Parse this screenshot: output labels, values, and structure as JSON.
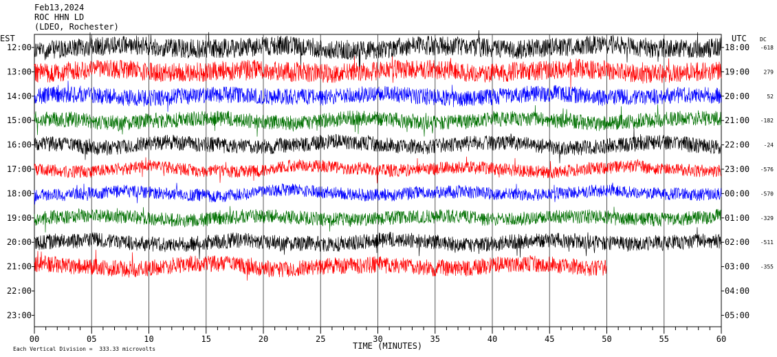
{
  "header": {
    "date": "Feb13,2024",
    "station": "ROC HHN LD",
    "network": "(LDEO, Rochester)"
  },
  "chart_data": {
    "type": "line",
    "xlabel": "TIME (MINUTES)",
    "x_ticks": [
      "00",
      "05",
      "10",
      "15",
      "20",
      "25",
      "30",
      "35",
      "40",
      "45",
      "50",
      "55",
      "60"
    ],
    "xlim": [
      0,
      60
    ],
    "left_axis_label": "EST",
    "right_axis_label": "UTC",
    "dc_label": "DC",
    "scale_note": "Each Vertical Division =  333.33 microvolts",
    "rows": [
      {
        "est": "12:00",
        "utc": "18:00",
        "dc": "-618",
        "color": "#000000",
        "minutes": 60,
        "amp": 14
      },
      {
        "est": "13:00",
        "utc": "19:00",
        "dc": "279",
        "color": "#ff0000",
        "minutes": 60,
        "amp": 14
      },
      {
        "est": "14:00",
        "utc": "20:00",
        "dc": "52",
        "color": "#0000ff",
        "minutes": 60,
        "amp": 12
      },
      {
        "est": "15:00",
        "utc": "21:00",
        "dc": "-182",
        "color": "#007000",
        "minutes": 60,
        "amp": 11
      },
      {
        "est": "16:00",
        "utc": "22:00",
        "dc": "-24",
        "color": "#000000",
        "minutes": 60,
        "amp": 11
      },
      {
        "est": "17:00",
        "utc": "23:00",
        "dc": "-576",
        "color": "#ff0000",
        "minutes": 60,
        "amp": 9
      },
      {
        "est": "18:00",
        "utc": "00:00",
        "dc": "-570",
        "color": "#0000ff",
        "minutes": 60,
        "amp": 9
      },
      {
        "est": "19:00",
        "utc": "01:00",
        "dc": "-329",
        "color": "#007000",
        "minutes": 60,
        "amp": 10
      },
      {
        "est": "20:00",
        "utc": "02:00",
        "dc": "-511",
        "color": "#000000",
        "minutes": 60,
        "amp": 11
      },
      {
        "est": "21:00",
        "utc": "03:00",
        "dc": "-355",
        "color": "#ff0000",
        "minutes": 50,
        "amp": 12
      },
      {
        "est": "22:00",
        "utc": "04:00",
        "dc": "",
        "color": "#000000",
        "minutes": 0,
        "amp": 0
      },
      {
        "est": "23:00",
        "utc": "05:00",
        "dc": "",
        "color": "#000000",
        "minutes": 0,
        "amp": 0
      }
    ]
  }
}
